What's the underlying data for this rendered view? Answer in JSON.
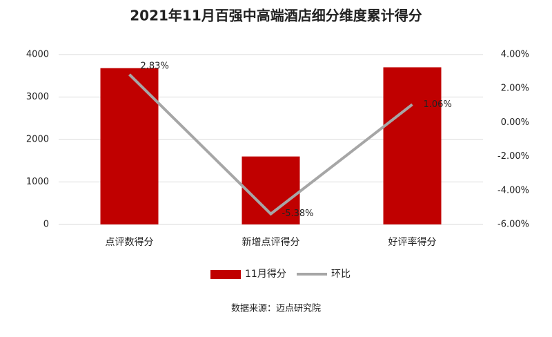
{
  "chart_data": {
    "type": "bar",
    "title": "2021年11月百强中高端酒店细分维度累计得分",
    "categories": [
      "点评数得分",
      "新增点评得分",
      "好评率得分"
    ],
    "series": [
      {
        "name": "11月得分",
        "type": "bar",
        "color": "#c00000",
        "values": [
          3680,
          1600,
          3700
        ]
      },
      {
        "name": "环比",
        "type": "line",
        "axis": "y2",
        "color": "#a6a6a6",
        "values": [
          2.83,
          -5.38,
          1.06
        ],
        "value_labels": [
          "2.83%",
          "-5.38%",
          "1.06%"
        ]
      }
    ],
    "ylim": [
      0,
      4000
    ],
    "yticks": [
      0,
      1000,
      2000,
      3000,
      4000
    ],
    "y2lim": [
      -6,
      4
    ],
    "y2ticks": [
      {
        "value": -6,
        "label": "-6.00%"
      },
      {
        "value": -4,
        "label": "-4.00%"
      },
      {
        "value": -2,
        "label": "-2.00%"
      },
      {
        "value": 0,
        "label": "0.00%"
      },
      {
        "value": 2,
        "label": "2.00%"
      },
      {
        "value": 4,
        "label": "4.00%"
      }
    ],
    "grid": true,
    "legend": "bottom",
    "source": "数据来源：迈点研究院"
  }
}
